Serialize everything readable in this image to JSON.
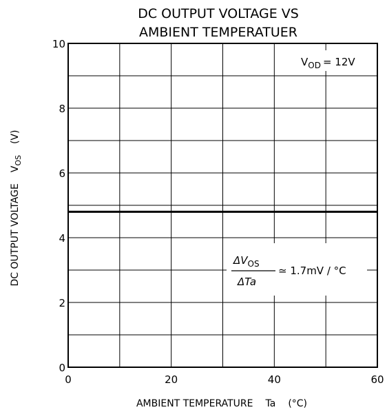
{
  "chart_data": {
    "type": "line",
    "title_lines": [
      "DC OUTPUT VOLTAGE VS",
      "AMBIENT TEMPERATUER"
    ],
    "xlabel": {
      "main": "AMBIENT TEMPERATURE",
      "symbol": "Ta",
      "unit": "(°C)"
    },
    "ylabel": {
      "main": "DC OUTPUT VOLTAGE",
      "symbol_base": "V",
      "symbol_sub": "OS",
      "unit": "(V)"
    },
    "xlim": [
      0,
      60
    ],
    "ylim": [
      0,
      10
    ],
    "x_tick_labels": [
      "0",
      "20",
      "40",
      "60"
    ],
    "y_tick_labels": [
      "0",
      "2",
      "4",
      "6",
      "8",
      "10"
    ],
    "grid": true,
    "series": [
      {
        "x": [
          0,
          60
        ],
        "y": [
          4.8,
          4.8
        ]
      }
    ],
    "condition": {
      "lhs_base": "V",
      "lhs_sub": "OD",
      "rhs": "= 12V"
    },
    "slope_annotation": {
      "numerator_base": "ΔV",
      "numerator_sub": "OS",
      "denominator": "ΔTa",
      "value": "≃ 1.7mV / °C"
    }
  }
}
